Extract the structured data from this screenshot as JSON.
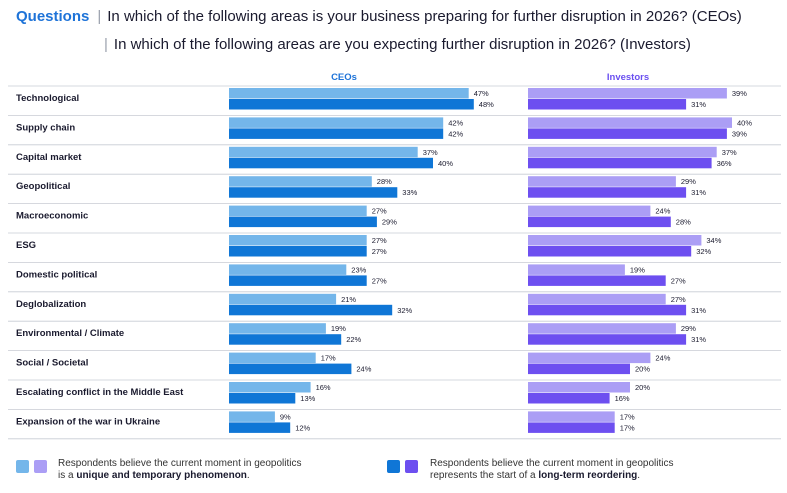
{
  "header": {
    "brand": "Questions",
    "q_ceo": "In which of the following areas is your business preparing for further disruption in 2026? (CEOs)",
    "q_inv": "In which of the following areas are you expecting further disruption in 2026? (Investors)"
  },
  "chart_data": {
    "type": "bar",
    "orientation": "horizontal",
    "panels": [
      "CEOs",
      "Investors"
    ],
    "categories": [
      "Technological",
      "Supply chain",
      "Capital market",
      "Geopolitical",
      "Macroeconomic",
      "ESG",
      "Domestic political",
      "Deglobalization",
      "Environmental / Climate",
      "Social / Societal",
      "Escalating conflict in the Middle East",
      "Expansion of the war in Ukraine"
    ],
    "series": [
      {
        "name": "CEOs - unique and temporary phenomenon",
        "panel": "CEOs",
        "color": "#74b6ea",
        "values": [
          47,
          42,
          37,
          28,
          27,
          27,
          23,
          21,
          19,
          17,
          16,
          9
        ]
      },
      {
        "name": "CEOs - start of a long-term reordering",
        "panel": "CEOs",
        "color": "#0f76d6",
        "values": [
          48,
          42,
          40,
          33,
          29,
          27,
          27,
          32,
          22,
          24,
          13,
          12
        ]
      },
      {
        "name": "Investors - unique and temporary phenomenon",
        "panel": "Investors",
        "color": "#ab9ef5",
        "values": [
          39,
          40,
          37,
          29,
          24,
          34,
          19,
          27,
          29,
          24,
          20,
          17
        ]
      },
      {
        "name": "Investors - start of a long-term reordering",
        "panel": "Investors",
        "color": "#6d4ff0",
        "values": [
          31,
          39,
          36,
          31,
          28,
          32,
          27,
          31,
          31,
          20,
          16,
          17
        ]
      }
    ],
    "value_suffix": "%",
    "xlim": [
      0,
      100
    ],
    "grid": false,
    "legend_position": "bottom"
  },
  "legend": {
    "temporary": {
      "line1": "Respondents believe the current moment in geopolitics",
      "prefix": "is a ",
      "bold": "unique and temporary phenomenon",
      "suffix": "."
    },
    "longterm": {
      "line1": "Respondents believe the current moment in geopolitics",
      "prefix": "represents the start of a ",
      "bold": "long-term reordering",
      "suffix": "."
    }
  },
  "colors": {
    "ceo_light": "#74b6ea",
    "ceo_dark": "#0f76d6",
    "inv_light": "#ab9ef5",
    "inv_dark": "#6d4ff0",
    "header_ceo": "#1e73d8",
    "header_inv": "#6a4ff0",
    "separator": "#c8ccd4"
  }
}
